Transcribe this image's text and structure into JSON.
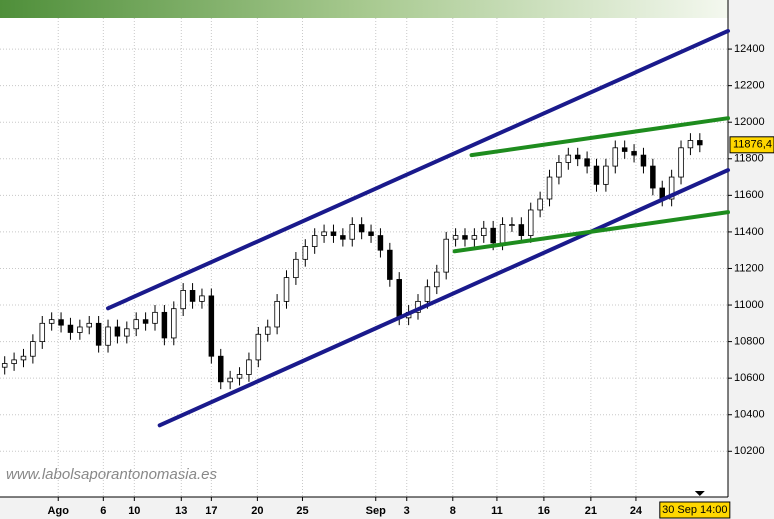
{
  "chart_data": {
    "type": "candlestick",
    "watermark": "www.labolsaporantonomasia.es",
    "x": [
      0,
      1,
      2,
      3,
      4,
      5,
      6,
      7,
      8,
      9,
      10,
      11,
      12,
      13,
      14,
      15,
      16,
      17,
      18,
      19,
      20,
      21,
      22,
      23,
      24,
      25,
      26,
      27,
      28,
      29,
      30,
      31,
      32,
      33,
      34,
      35,
      36,
      37,
      38,
      39,
      40,
      41,
      42,
      43,
      44,
      45,
      46,
      47,
      48,
      49,
      50,
      51,
      52,
      53,
      54,
      55,
      56,
      57,
      58,
      59,
      60,
      61,
      62,
      63,
      64,
      65,
      66,
      67,
      68,
      69,
      70,
      71,
      72,
      73,
      74
    ],
    "open": [
      10660,
      10680,
      10700,
      10720,
      10800,
      10900,
      10920,
      10890,
      10850,
      10880,
      10900,
      10780,
      10880,
      10830,
      10870,
      10920,
      10900,
      10960,
      10820,
      10980,
      11080,
      11020,
      11050,
      10720,
      10580,
      10600,
      10620,
      10700,
      10840,
      10880,
      11020,
      11150,
      11250,
      11320,
      11380,
      11400,
      11380,
      11360,
      11440,
      11400,
      11380,
      11300,
      11140,
      10930,
      10960,
      11020,
      11100,
      11180,
      11360,
      11380,
      11360,
      11380,
      11420,
      11340,
      11440,
      11440,
      11380,
      11520,
      11580,
      11700,
      11780,
      11820,
      11800,
      11760,
      11660,
      11760,
      11860,
      11840,
      11820,
      11760,
      11640,
      11580,
      11700,
      11860,
      11900
    ],
    "high": [
      10720,
      10740,
      10760,
      10840,
      10940,
      10960,
      10960,
      10930,
      10920,
      10940,
      10940,
      10920,
      10920,
      10910,
      10960,
      10960,
      11000,
      11000,
      11020,
      11120,
      11120,
      11090,
      11090,
      10760,
      10640,
      10660,
      10740,
      10880,
      10920,
      11060,
      11190,
      11290,
      11360,
      11420,
      11440,
      11440,
      11420,
      11480,
      11480,
      11440,
      11420,
      11340,
      11180,
      11000,
      11060,
      11140,
      11220,
      11400,
      11420,
      11420,
      11420,
      11460,
      11460,
      11480,
      11480,
      11480,
      11560,
      11620,
      11740,
      11820,
      11860,
      11860,
      11840,
      11800,
      11800,
      11900,
      11900,
      11880,
      11860,
      11800,
      11680,
      11740,
      11900,
      11940,
      11940
    ],
    "low": [
      10620,
      10640,
      10660,
      10680,
      10760,
      10860,
      10850,
      10810,
      10810,
      10840,
      10740,
      10740,
      10790,
      10790,
      10830,
      10860,
      10860,
      10780,
      10780,
      10940,
      10980,
      10980,
      10680,
      10540,
      10540,
      10560,
      10580,
      10660,
      10800,
      10840,
      10980,
      11110,
      11210,
      11280,
      11340,
      11340,
      11320,
      11320,
      11360,
      11340,
      11260,
      11100,
      10890,
      10890,
      10920,
      10980,
      11060,
      11140,
      11320,
      11320,
      11320,
      11340,
      11300,
      11300,
      11400,
      11340,
      11340,
      11480,
      11540,
      11660,
      11740,
      11760,
      11720,
      11620,
      11620,
      11720,
      11800,
      11780,
      11720,
      11600,
      11540,
      11540,
      11660,
      11820,
      11836
    ],
    "close": [
      10680,
      10700,
      10720,
      10800,
      10900,
      10920,
      10890,
      10850,
      10880,
      10900,
      10780,
      10880,
      10830,
      10870,
      10920,
      10900,
      10960,
      10820,
      10980,
      11080,
      11020,
      11050,
      10720,
      10580,
      10600,
      10620,
      10700,
      10840,
      10880,
      11020,
      11150,
      11250,
      11320,
      11380,
      11400,
      11380,
      11360,
      11440,
      11400,
      11380,
      11300,
      11140,
      10930,
      10960,
      11020,
      11100,
      11180,
      11360,
      11380,
      11360,
      11380,
      11420,
      11340,
      11440,
      11440,
      11380,
      11520,
      11580,
      11700,
      11780,
      11820,
      11800,
      11760,
      11660,
      11760,
      11860,
      11840,
      11820,
      11760,
      11640,
      11580,
      11700,
      11860,
      11900,
      11876
    ],
    "xlim": [
      -0.5,
      77
    ],
    "ylim": [
      9950,
      12570
    ],
    "xticks": [
      {
        "value": 5.7,
        "label": "Ago"
      },
      {
        "value": 10.5,
        "label": "6"
      },
      {
        "value": 13.8,
        "label": "10"
      },
      {
        "value": 18.8,
        "label": "13"
      },
      {
        "value": 22,
        "label": "17"
      },
      {
        "value": 26.9,
        "label": "20"
      },
      {
        "value": 31.7,
        "label": "25"
      },
      {
        "value": 39.5,
        "label": "Sep"
      },
      {
        "value": 42.8,
        "label": "3"
      },
      {
        "value": 47.7,
        "label": "8"
      },
      {
        "value": 52.4,
        "label": "11"
      },
      {
        "value": 57.4,
        "label": "16"
      },
      {
        "value": 62.4,
        "label": "21"
      },
      {
        "value": 67.2,
        "label": "24"
      }
    ],
    "last_time": {
      "value": 74,
      "label": "30 Sep 14:00"
    },
    "last_price": {
      "value": 11876.4,
      "label": "11876,4"
    },
    "yticks": [
      10200,
      10400,
      10600,
      10800,
      11000,
      11200,
      11400,
      11600,
      11800,
      12000,
      12200,
      12400
    ],
    "grid": true,
    "trendlines": [
      {
        "color": "#1a1a8c",
        "x": [
          11.0,
          77.0
        ],
        "y": [
          10982,
          12499
        ]
      },
      {
        "color": "#1a1a8c",
        "x": [
          16.5,
          77.0
        ],
        "y": [
          10342,
          11738
        ]
      },
      {
        "color": "#1e8c1e",
        "x": [
          49.7,
          77.0
        ],
        "y": [
          11820,
          12022
        ]
      },
      {
        "color": "#1e8c1e",
        "x": [
          47.9,
          77.0
        ],
        "y": [
          11294,
          11508
        ]
      }
    ]
  }
}
